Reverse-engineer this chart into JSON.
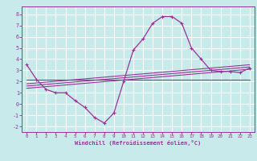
{
  "bg_color": "#c8eaea",
  "grid_color": "#ffffff",
  "line_color": "#993399",
  "xlabel": "Windchill (Refroidissement éolien,°C)",
  "xlim": [
    -0.5,
    23.5
  ],
  "ylim": [
    -2.5,
    8.7
  ],
  "xticks": [
    0,
    1,
    2,
    3,
    4,
    5,
    6,
    7,
    8,
    9,
    10,
    11,
    12,
    13,
    14,
    15,
    16,
    17,
    18,
    19,
    20,
    21,
    22,
    23
  ],
  "yticks": [
    -2,
    -1,
    0,
    1,
    2,
    3,
    4,
    5,
    6,
    7,
    8
  ],
  "curve1_x": [
    0,
    1,
    2,
    3,
    4,
    5,
    6,
    7,
    8,
    9,
    10,
    11,
    12,
    13,
    14,
    15,
    16,
    17,
    18,
    19,
    20,
    21,
    22,
    23
  ],
  "curve1_y": [
    3.5,
    2.2,
    1.3,
    1.0,
    1.0,
    0.3,
    -0.3,
    -1.2,
    -1.7,
    -0.8,
    2.0,
    4.8,
    5.8,
    7.2,
    7.8,
    7.8,
    7.2,
    5.0,
    4.0,
    3.0,
    2.9,
    2.9,
    2.8,
    3.2
  ],
  "line2_x": [
    0,
    23
  ],
  "line2_y": [
    2.2,
    2.2
  ],
  "line3_x": [
    0,
    23
  ],
  "line3_y": [
    1.4,
    3.1
  ],
  "line4_x": [
    0,
    23
  ],
  "line4_y": [
    1.6,
    3.3
  ],
  "line5_x": [
    0,
    23
  ],
  "line5_y": [
    1.8,
    3.5
  ]
}
